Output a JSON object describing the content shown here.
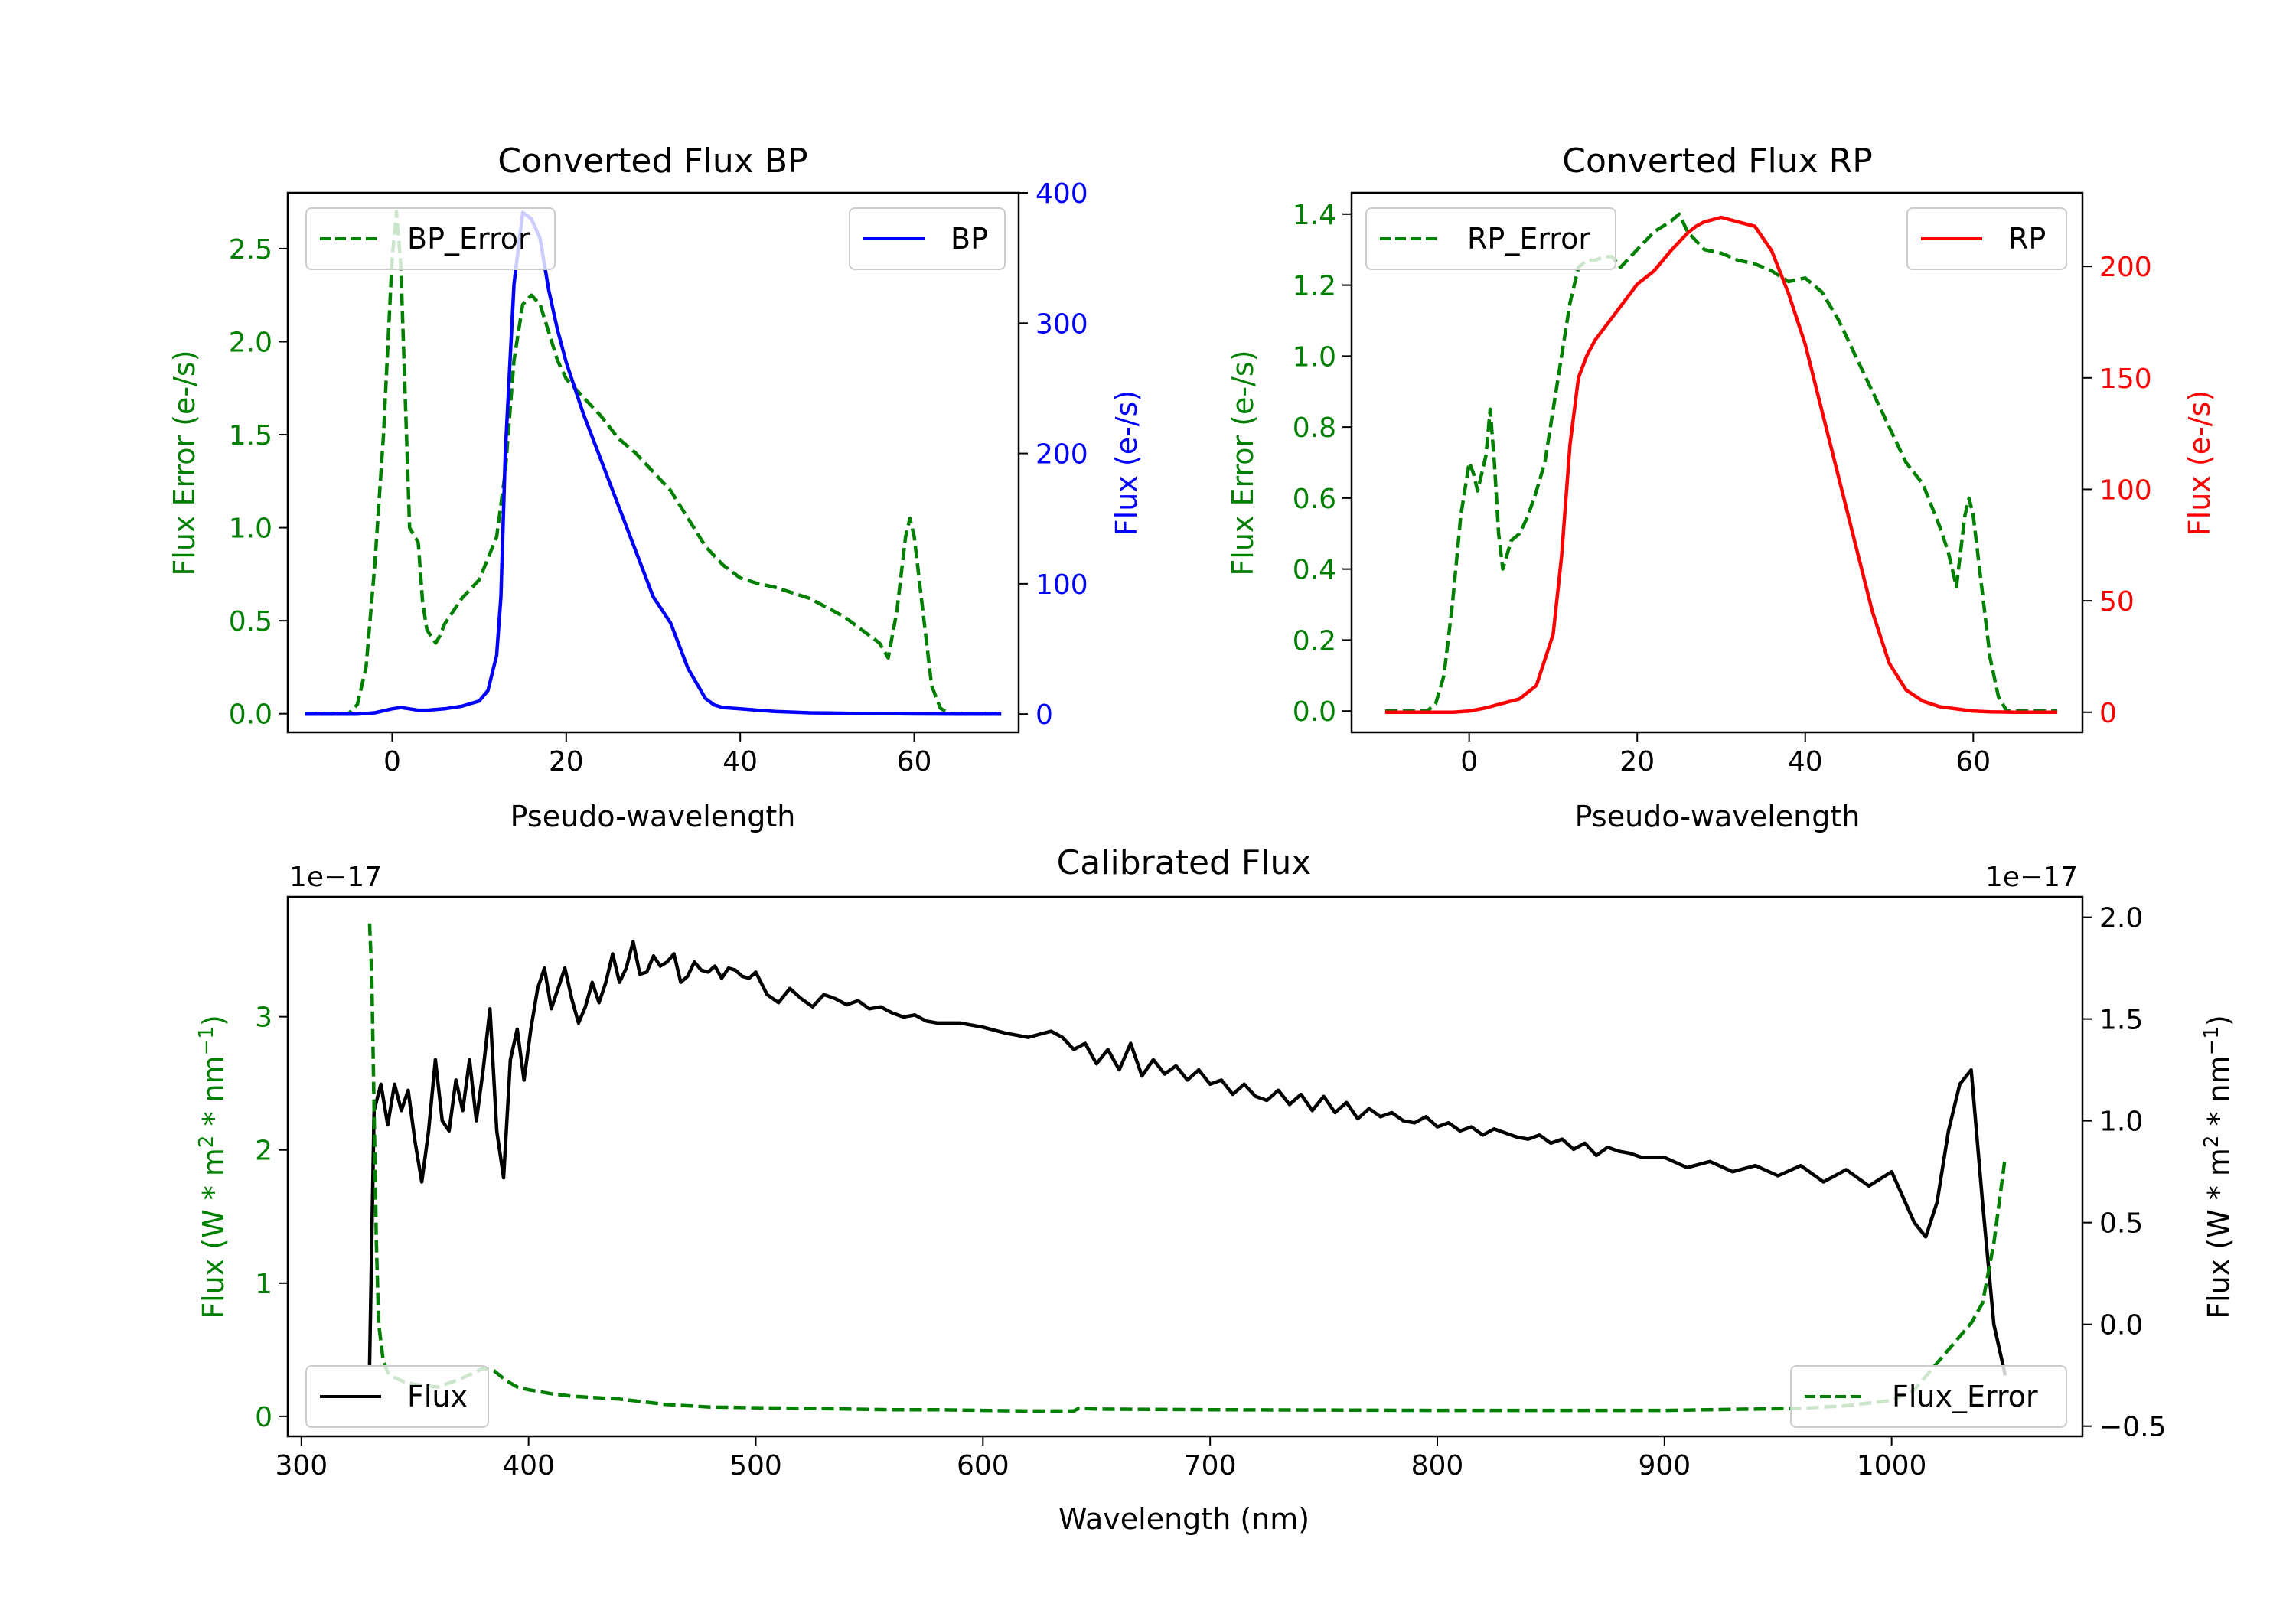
{
  "figure": {
    "bp_panel": {
      "title": "Converted Flux BP",
      "xlabel": "Pseudo-wavelength",
      "ylabel_left": "Flux Error (e-/s)",
      "ylabel_right": "Flux (e-/s)",
      "xticks": [
        "0",
        "20",
        "40",
        "60"
      ],
      "yticks_left": [
        "0.0",
        "0.5",
        "1.0",
        "1.5",
        "2.0",
        "2.5"
      ],
      "yticks_right": [
        "0",
        "100",
        "200",
        "300",
        "400"
      ],
      "legend_left_label": "BP_Error",
      "legend_right_label": "BP"
    },
    "rp_panel": {
      "title": "Converted Flux RP",
      "xlabel": "Pseudo-wavelength",
      "ylabel_left": "Flux Error (e-/s)",
      "ylabel_right": "Flux (e-/s)",
      "xticks": [
        "0",
        "20",
        "40",
        "60"
      ],
      "yticks_left": [
        "0.0",
        "0.2",
        "0.4",
        "0.6",
        "0.8",
        "1.0",
        "1.2",
        "1.4"
      ],
      "yticks_right": [
        "0",
        "50",
        "100",
        "150",
        "200"
      ],
      "legend_left_label": "RP_Error",
      "legend_right_label": "RP"
    },
    "cal_panel": {
      "title": "Calibrated Flux",
      "xlabel": "Wavelength (nm)",
      "ylabel_left": "Flux (W * m",
      "ylabel_right": "Flux (W * m",
      "ylabel_mid": " * nm",
      "ylabel_end": ")",
      "sup_two": "2",
      "sup_neg_one": "−1",
      "offset_left": "1e−17",
      "offset_right": "1e−17",
      "xticks": [
        "300",
        "400",
        "500",
        "600",
        "700",
        "800",
        "900",
        "1000"
      ],
      "yticks_left": [
        "0",
        "1",
        "2",
        "3"
      ],
      "yticks_right": [
        "−0.5",
        "0.0",
        "0.5",
        "1.0",
        "1.5",
        "2.0"
      ],
      "legend_left_label": "Flux",
      "legend_right_label": "Flux_Error"
    }
  },
  "chart_data": [
    {
      "type": "line",
      "title": "Converted Flux BP",
      "xlabel": "Pseudo-wavelength",
      "xlim": [
        -12,
        72
      ],
      "axes": {
        "left": {
          "label": "Flux Error (e-/s)",
          "ylim": [
            -0.1,
            2.8
          ]
        },
        "right": {
          "label": "Flux (e-/s)",
          "ylim": [
            -14,
            400
          ]
        }
      },
      "series": [
        {
          "name": "BP_Error",
          "axis": "left",
          "color": "#008000",
          "style": "dashed",
          "x": [
            -10,
            -5,
            -4,
            -3,
            -2,
            -1,
            0,
            0.5,
            1,
            1.5,
            2,
            3,
            3.5,
            4,
            5,
            5.5,
            6,
            7,
            8,
            10,
            12,
            13,
            14,
            15,
            16,
            17,
            18,
            19,
            20,
            22,
            24,
            26,
            28,
            30,
            32,
            34,
            36,
            38,
            40,
            42,
            44,
            46,
            48,
            50,
            52,
            54,
            56,
            57,
            58,
            59,
            59.5,
            60,
            61,
            62,
            63,
            64,
            70
          ],
          "y": [
            0,
            0,
            0.05,
            0.25,
            0.8,
            1.5,
            2.45,
            2.7,
            2.4,
            1.7,
            1.0,
            0.92,
            0.6,
            0.45,
            0.38,
            0.42,
            0.48,
            0.55,
            0.62,
            0.72,
            0.95,
            1.3,
            1.9,
            2.2,
            2.25,
            2.2,
            2.05,
            1.9,
            1.8,
            1.7,
            1.6,
            1.48,
            1.4,
            1.3,
            1.2,
            1.05,
            0.9,
            0.8,
            0.73,
            0.7,
            0.68,
            0.65,
            0.62,
            0.57,
            0.52,
            0.45,
            0.38,
            0.3,
            0.55,
            0.95,
            1.05,
            0.95,
            0.55,
            0.15,
            0.03,
            0,
            0
          ]
        },
        {
          "name": "BP",
          "axis": "right",
          "color": "#0000ff",
          "style": "solid",
          "x": [
            -10,
            -4,
            -2,
            0,
            1,
            2,
            3,
            4,
            6,
            8,
            10,
            11,
            12,
            12.5,
            13,
            14,
            15,
            16,
            17,
            18,
            19,
            20,
            22,
            24,
            26,
            28,
            30,
            32,
            34,
            36,
            37,
            38,
            40,
            42,
            44,
            46,
            48,
            50,
            52,
            54,
            56,
            58,
            60,
            65,
            70
          ],
          "y": [
            0,
            0,
            1,
            4,
            5,
            4,
            3,
            3,
            4,
            6,
            10,
            18,
            45,
            90,
            200,
            330,
            385,
            380,
            365,
            325,
            295,
            270,
            230,
            195,
            160,
            125,
            90,
            70,
            35,
            12,
            7,
            5,
            4,
            3,
            2,
            1.5,
            1,
            0.8,
            0.6,
            0.4,
            0.3,
            0.2,
            0.1,
            0,
            0
          ]
        }
      ]
    },
    {
      "type": "line",
      "title": "Converted Flux RP",
      "xlabel": "Pseudo-wavelength",
      "xlim": [
        -14,
        73
      ],
      "axes": {
        "left": {
          "label": "Flux Error (e-/s)",
          "ylim": [
            -0.06,
            1.46
          ]
        },
        "right": {
          "label": "Flux (e-/s)",
          "ylim": [
            -9,
            233
          ]
        }
      },
      "series": [
        {
          "name": "RP_Error",
          "axis": "left",
          "color": "#008000",
          "style": "dashed",
          "x": [
            -10,
            -5,
            -4,
            -3,
            -2,
            -1,
            0,
            0.5,
            1,
            2,
            2.5,
            3,
            3.5,
            4,
            5,
            6,
            7,
            8,
            9,
            10,
            11,
            12,
            13,
            14,
            15,
            16,
            17,
            18,
            20,
            22,
            24,
            25,
            26,
            28,
            30,
            32,
            34,
            36,
            38,
            40,
            42,
            44,
            46,
            48,
            50,
            52,
            54,
            56,
            57,
            58,
            59,
            59.5,
            60,
            61,
            62,
            63,
            64,
            70
          ],
          "y": [
            0,
            0,
            0.02,
            0.1,
            0.3,
            0.55,
            0.7,
            0.67,
            0.62,
            0.72,
            0.85,
            0.7,
            0.5,
            0.4,
            0.48,
            0.5,
            0.55,
            0.62,
            0.7,
            0.85,
            1.0,
            1.15,
            1.25,
            1.27,
            1.27,
            1.28,
            1.28,
            1.25,
            1.3,
            1.35,
            1.38,
            1.4,
            1.35,
            1.3,
            1.29,
            1.27,
            1.26,
            1.24,
            1.21,
            1.22,
            1.18,
            1.1,
            1.0,
            0.9,
            0.8,
            0.7,
            0.64,
            0.52,
            0.45,
            0.35,
            0.55,
            0.6,
            0.55,
            0.35,
            0.15,
            0.04,
            0,
            0
          ]
        },
        {
          "name": "RP",
          "axis": "right",
          "color": "#ff0000",
          "style": "solid",
          "x": [
            -10,
            -2,
            0,
            2,
            4,
            6,
            8,
            10,
            11,
            12,
            13,
            14,
            15,
            16,
            18,
            20,
            22,
            24,
            26,
            27,
            28,
            29,
            30,
            31,
            32,
            33,
            34,
            36,
            38,
            40,
            42,
            44,
            46,
            48,
            50,
            52,
            54,
            56,
            58,
            60,
            62,
            65,
            70
          ],
          "y": [
            0,
            0,
            0.5,
            2,
            4,
            6,
            12,
            35,
            70,
            120,
            150,
            160,
            167,
            172,
            182,
            192,
            198,
            207,
            215,
            218,
            220,
            221,
            222,
            221,
            220,
            219,
            218,
            207,
            188,
            165,
            135,
            105,
            75,
            45,
            22,
            10,
            5,
            2.5,
            1.5,
            0.5,
            0.2,
            0,
            0
          ]
        }
      ]
    },
    {
      "type": "line",
      "title": "Calibrated Flux",
      "xlabel": "Wavelength (nm)",
      "xlim": [
        294,
        1084
      ],
      "axes": {
        "left": {
          "label": "Flux (W * m^2 * nm^-1)",
          "scale": "1e-17",
          "ylim": [
            -0.15,
            3.9
          ]
        },
        "right": {
          "label": "Flux (W * m^2 * nm^-1)",
          "scale": "1e-17",
          "ylim": [
            -0.55,
            2.1
          ]
        }
      },
      "series": [
        {
          "name": "Flux",
          "axis": "right",
          "color": "#000000",
          "style": "solid",
          "x": [
            330,
            332,
            335,
            338,
            341,
            344,
            347,
            350,
            353,
            356,
            359,
            362,
            365,
            368,
            371,
            374,
            377,
            380,
            383,
            386,
            389,
            392,
            395,
            398,
            401,
            404,
            407,
            410,
            413,
            416,
            419,
            422,
            425,
            428,
            431,
            434,
            437,
            440,
            443,
            446,
            449,
            452,
            455,
            458,
            461,
            464,
            467,
            470,
            473,
            476,
            479,
            482,
            485,
            488,
            491,
            494,
            497,
            500,
            505,
            510,
            515,
            520,
            525,
            530,
            535,
            540,
            545,
            550,
            555,
            560,
            565,
            570,
            575,
            580,
            590,
            600,
            610,
            620,
            630,
            635,
            640,
            645,
            650,
            655,
            660,
            665,
            670,
            675,
            680,
            685,
            690,
            695,
            700,
            705,
            710,
            715,
            720,
            725,
            730,
            735,
            740,
            745,
            750,
            755,
            760,
            765,
            770,
            775,
            780,
            785,
            790,
            795,
            800,
            805,
            810,
            815,
            820,
            825,
            830,
            835,
            840,
            845,
            850,
            855,
            860,
            865,
            870,
            875,
            880,
            885,
            890,
            900,
            910,
            920,
            930,
            940,
            950,
            960,
            970,
            980,
            990,
            1000,
            1010,
            1015,
            1020,
            1025,
            1030,
            1035,
            1040,
            1045,
            1050
          ],
          "y": [
            -0.2,
            1.05,
            1.18,
            0.98,
            1.18,
            1.05,
            1.15,
            0.9,
            0.7,
            0.95,
            1.3,
            1.0,
            0.95,
            1.2,
            1.05,
            1.3,
            1.0,
            1.25,
            1.55,
            0.95,
            0.72,
            1.3,
            1.45,
            1.2,
            1.45,
            1.65,
            1.75,
            1.55,
            1.65,
            1.75,
            1.6,
            1.48,
            1.56,
            1.68,
            1.58,
            1.68,
            1.82,
            1.68,
            1.75,
            1.88,
            1.72,
            1.73,
            1.81,
            1.76,
            1.78,
            1.82,
            1.68,
            1.71,
            1.78,
            1.74,
            1.73,
            1.76,
            1.7,
            1.75,
            1.74,
            1.71,
            1.7,
            1.73,
            1.62,
            1.58,
            1.65,
            1.6,
            1.56,
            1.62,
            1.6,
            1.57,
            1.59,
            1.55,
            1.56,
            1.53,
            1.51,
            1.52,
            1.49,
            1.48,
            1.48,
            1.46,
            1.43,
            1.41,
            1.44,
            1.41,
            1.35,
            1.38,
            1.28,
            1.35,
            1.25,
            1.38,
            1.22,
            1.3,
            1.23,
            1.27,
            1.2,
            1.25,
            1.18,
            1.2,
            1.13,
            1.18,
            1.12,
            1.1,
            1.15,
            1.08,
            1.13,
            1.05,
            1.12,
            1.04,
            1.09,
            1.01,
            1.06,
            1.02,
            1.04,
            1.0,
            0.99,
            1.02,
            0.97,
            0.99,
            0.95,
            0.97,
            0.93,
            0.96,
            0.94,
            0.92,
            0.91,
            0.93,
            0.89,
            0.91,
            0.86,
            0.89,
            0.83,
            0.87,
            0.85,
            0.84,
            0.82,
            0.82,
            0.77,
            0.8,
            0.75,
            0.78,
            0.73,
            0.78,
            0.7,
            0.76,
            0.68,
            0.75,
            0.5,
            0.43,
            0.6,
            0.95,
            1.18,
            1.25,
            0.6,
            0.0,
            -0.25
          ]
        },
        {
          "name": "Flux_Error",
          "axis": "left",
          "color": "#008000",
          "style": "dashed",
          "x": [
            330,
            331,
            332,
            333,
            334,
            336,
            338,
            340,
            345,
            350,
            360,
            370,
            380,
            385,
            390,
            395,
            400,
            410,
            420,
            430,
            440,
            450,
            460,
            470,
            480,
            500,
            520,
            540,
            560,
            580,
            600,
            620,
            640,
            642,
            650,
            700,
            800,
            900,
            960,
            980,
            1000,
            1010,
            1020,
            1030,
            1035,
            1040,
            1045,
            1050
          ],
          "y": [
            3.7,
            3.3,
            2.3,
            1.3,
            0.7,
            0.42,
            0.33,
            0.3,
            0.26,
            0.24,
            0.22,
            0.28,
            0.36,
            0.34,
            0.27,
            0.22,
            0.2,
            0.17,
            0.15,
            0.14,
            0.13,
            0.11,
            0.09,
            0.08,
            0.07,
            0.065,
            0.06,
            0.055,
            0.05,
            0.05,
            0.045,
            0.04,
            0.04,
            0.06,
            0.055,
            0.05,
            0.045,
            0.045,
            0.06,
            0.08,
            0.12,
            0.2,
            0.4,
            0.6,
            0.7,
            0.85,
            1.3,
            1.95
          ]
        }
      ]
    }
  ]
}
